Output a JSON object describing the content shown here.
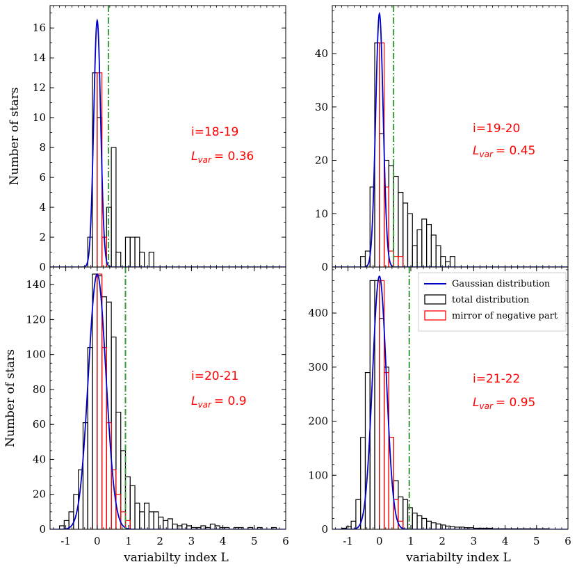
{
  "colors": {
    "gaussian": "#0000cc",
    "total": "#000000",
    "mirror": "#ff0000",
    "threshold": "#3a9a3a",
    "annotation": "#ff0000"
  },
  "legend": {
    "gaussian": "Gaussian distribution",
    "total": "total distribution",
    "mirror": "mirror of negative part"
  },
  "chart_data": [
    {
      "type": "bar",
      "panel": "top-left",
      "title": "",
      "ylabel": "Number of stars",
      "xlabel": "",
      "xlim": [
        -1.5,
        6
      ],
      "ylim": [
        0,
        17.5
      ],
      "xticks": [],
      "xtick_labels": [],
      "yticks": [
        0,
        2,
        4,
        6,
        8,
        10,
        12,
        14,
        16
      ],
      "yminor": 1,
      "xminor": 0.2,
      "bin_width": 0.15,
      "total": {
        "edges": [
          -0.45,
          -0.3,
          -0.15,
          0.0,
          0.15,
          0.3,
          0.45,
          0.6,
          0.75,
          0.9,
          1.05,
          1.2,
          1.35,
          1.5,
          1.65,
          1.8
        ],
        "counts": [
          0,
          2,
          13,
          10,
          2,
          4,
          8,
          1,
          0,
          2,
          2,
          2,
          1,
          0,
          1
        ]
      },
      "mirror": {
        "edges": [
          0.0,
          0.15,
          0.3
        ],
        "counts": [
          13,
          2
        ]
      },
      "gaussian": {
        "amp": 16.5,
        "mu": 0.0,
        "sigma": 0.11
      },
      "threshold": 0.36,
      "annotation": {
        "line1": "i=18-19",
        "lvar_symbol": "L",
        "lvar_sub": "var",
        "lvar_value": "= 0.36"
      }
    },
    {
      "type": "bar",
      "panel": "top-right",
      "title": "",
      "ylabel": "",
      "xlabel": "",
      "xlim": [
        -1.5,
        6
      ],
      "ylim": [
        0,
        49
      ],
      "xticks": [],
      "xtick_labels": [],
      "yticks": [
        0,
        10,
        20,
        30,
        40
      ],
      "yminor": 2,
      "xminor": 0.2,
      "bin_width": 0.15,
      "total": {
        "edges": [
          -0.6,
          -0.45,
          -0.3,
          -0.15,
          0.0,
          0.15,
          0.3,
          0.45,
          0.6,
          0.75,
          0.9,
          1.05,
          1.2,
          1.35,
          1.5,
          1.65,
          1.8,
          1.95,
          2.1,
          2.25,
          2.4
        ],
        "counts": [
          2,
          3,
          15,
          42,
          25,
          20,
          19,
          17,
          14,
          12,
          10,
          4,
          7,
          9,
          8,
          6,
          4,
          2,
          1,
          2
        ]
      },
      "mirror": {
        "edges": [
          0.0,
          0.15,
          0.3,
          0.45,
          0.6,
          0.75
        ],
        "counts": [
          42,
          15,
          3,
          2,
          2
        ]
      },
      "gaussian": {
        "amp": 47.5,
        "mu": 0.0,
        "sigma": 0.12
      },
      "threshold": 0.45,
      "annotation": {
        "line1": "i=19-20",
        "lvar_symbol": "L",
        "lvar_sub": "var",
        "lvar_value": "= 0.45"
      }
    },
    {
      "type": "bar",
      "panel": "bottom-left",
      "title": "",
      "ylabel": "Number of stars",
      "xlabel": "variabilty index L",
      "xlim": [
        -1.5,
        6
      ],
      "ylim": [
        0,
        150
      ],
      "xticks": [
        -1,
        0,
        1,
        2,
        3,
        4,
        5,
        6
      ],
      "xtick_labels": [
        "-1",
        "0",
        "1",
        "2",
        "3",
        "4",
        "5",
        "6"
      ],
      "yticks": [
        0,
        20,
        40,
        60,
        80,
        100,
        120,
        140
      ],
      "yminor": 5,
      "xminor": 0.2,
      "bin_width": 0.15,
      "total": {
        "edges": [
          -1.2,
          -1.05,
          -0.9,
          -0.75,
          -0.6,
          -0.45,
          -0.3,
          -0.15,
          0.0,
          0.15,
          0.3,
          0.45,
          0.6,
          0.75,
          0.9,
          1.05,
          1.2,
          1.35,
          1.5,
          1.65,
          1.8,
          1.95,
          2.1,
          2.25,
          2.4,
          2.55,
          2.7,
          2.85,
          3.0,
          3.15,
          3.3,
          3.45,
          3.6,
          3.75,
          3.9,
          4.05,
          4.2,
          4.35,
          4.5,
          4.65,
          4.8,
          4.95,
          5.1,
          5.25,
          5.4,
          5.55,
          5.7
        ],
        "counts": [
          2,
          5,
          10,
          20,
          34,
          61,
          104,
          146,
          145,
          133,
          130,
          110,
          67,
          45,
          30,
          25,
          15,
          10,
          15,
          10,
          10,
          7,
          5,
          6,
          3,
          2,
          3,
          2,
          1,
          1,
          2,
          1,
          3,
          2,
          1,
          1,
          0,
          1,
          1,
          0,
          1,
          0,
          1,
          0,
          0,
          1
        ]
      },
      "mirror": {
        "edges": [
          0.0,
          0.15,
          0.3,
          0.45,
          0.6,
          0.75,
          0.9,
          1.05
        ],
        "counts": [
          146,
          104,
          61,
          34,
          20,
          10,
          5
        ]
      },
      "gaussian": {
        "amp": 146,
        "mu": 0.0,
        "sigma": 0.28
      },
      "threshold": 0.9,
      "annotation": {
        "line1": "i=20-21",
        "lvar_symbol": "L",
        "lvar_sub": "var",
        "lvar_value": "= 0.9"
      }
    },
    {
      "type": "bar",
      "panel": "bottom-right",
      "title": "",
      "ylabel": "",
      "xlabel": "variabilty index L",
      "xlim": [
        -1.5,
        6
      ],
      "ylim": [
        0,
        485
      ],
      "xticks": [
        -1,
        0,
        1,
        2,
        3,
        4,
        5,
        6
      ],
      "xtick_labels": [
        "-1",
        "0",
        "1",
        "2",
        "3",
        "4",
        "5",
        "6"
      ],
      "yticks": [
        0,
        100,
        200,
        300,
        400
      ],
      "yminor": 20,
      "xminor": 0.2,
      "bin_width": 0.15,
      "total": {
        "edges": [
          -1.2,
          -1.05,
          -0.9,
          -0.75,
          -0.6,
          -0.45,
          -0.3,
          -0.15,
          0.0,
          0.15,
          0.3,
          0.45,
          0.6,
          0.75,
          0.9,
          1.05,
          1.2,
          1.35,
          1.5,
          1.65,
          1.8,
          1.95,
          2.1,
          2.25,
          2.4,
          2.55,
          2.7,
          2.85,
          3.0,
          3.15,
          3.3,
          3.45,
          3.6,
          3.75,
          3.9,
          4.05,
          4.2,
          4.35,
          4.5,
          4.65,
          4.8,
          4.95,
          5.1,
          5.25,
          5.4
        ],
        "counts": [
          2,
          5,
          15,
          55,
          170,
          290,
          460,
          460,
          390,
          300,
          170,
          90,
          60,
          55,
          40,
          30,
          25,
          20,
          15,
          12,
          10,
          8,
          6,
          5,
          4,
          4,
          3,
          3,
          2,
          2,
          2,
          2,
          1,
          1,
          1,
          1,
          1,
          1,
          1,
          1,
          1,
          1,
          1,
          1
        ]
      },
      "mirror": {
        "edges": [
          0.0,
          0.15,
          0.3,
          0.45,
          0.6,
          0.75
        ],
        "counts": [
          460,
          290,
          170,
          55,
          15
        ]
      },
      "gaussian": {
        "amp": 468,
        "mu": 0.0,
        "sigma": 0.22
      },
      "threshold": 0.95,
      "annotation": {
        "line1": "i=21-22",
        "lvar_symbol": "L",
        "lvar_sub": "var",
        "lvar_value": "= 0.95"
      },
      "has_legend": true
    }
  ]
}
